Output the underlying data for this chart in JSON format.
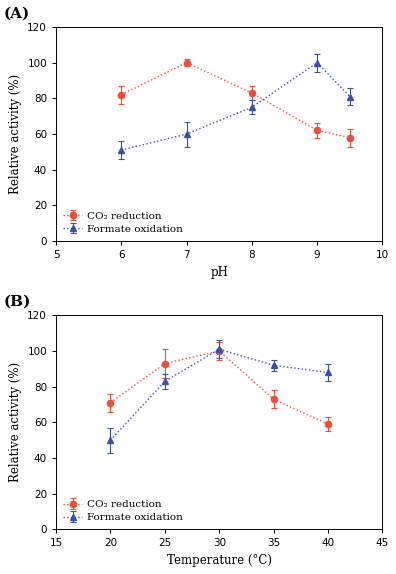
{
  "panel_A": {
    "title": "(A)",
    "xlabel": "pH",
    "ylabel": "Relative activity (%)",
    "xlim": [
      5,
      10
    ],
    "ylim": [
      0,
      120
    ],
    "xticks": [
      5,
      6,
      7,
      8,
      9,
      10
    ],
    "yticks": [
      0,
      20,
      40,
      60,
      80,
      100,
      120
    ],
    "co2_x": [
      6,
      7,
      8,
      9,
      9.5
    ],
    "co2_y": [
      82,
      100,
      83,
      62,
      58
    ],
    "co2_yerr": [
      5,
      2,
      4,
      4,
      5
    ],
    "formate_x": [
      6,
      7,
      8,
      9,
      9.5
    ],
    "formate_y": [
      51,
      60,
      75,
      100,
      81
    ],
    "formate_yerr": [
      5,
      7,
      4,
      5,
      5
    ],
    "legend_labels": [
      "CO₂ reduction",
      "Formate oxidation"
    ],
    "co2_color": "#e8503a",
    "formate_color": "#3b4fa8"
  },
  "panel_B": {
    "title": "(B)",
    "xlabel": "Temperature (°C)",
    "ylabel": "Relative activity (%)",
    "xlim": [
      15,
      45
    ],
    "ylim": [
      0,
      120
    ],
    "xticks": [
      15,
      20,
      25,
      30,
      35,
      40,
      45
    ],
    "yticks": [
      0,
      20,
      40,
      60,
      80,
      100,
      120
    ],
    "co2_x": [
      20,
      25,
      30,
      35,
      40
    ],
    "co2_y": [
      71,
      93,
      100,
      73,
      59
    ],
    "co2_yerr": [
      5,
      8,
      5,
      5,
      4
    ],
    "formate_x": [
      20,
      25,
      30,
      35,
      40
    ],
    "formate_y": [
      50,
      83,
      101,
      92,
      88
    ],
    "formate_yerr": [
      7,
      4,
      5,
      3,
      5
    ],
    "legend_labels": [
      "CO₂ reduction",
      "Formate oxidation"
    ],
    "co2_color": "#e8503a",
    "formate_color": "#3b4fa8"
  }
}
